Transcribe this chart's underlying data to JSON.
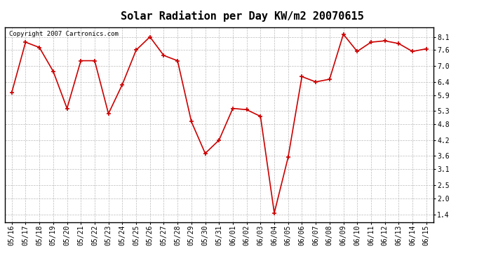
{
  "title": "Solar Radiation per Day KW/m2 20070615",
  "copyright_text": "Copyright 2007 Cartronics.com",
  "dates": [
    "05/16",
    "05/17",
    "05/18",
    "05/19",
    "05/20",
    "05/21",
    "05/22",
    "05/23",
    "05/24",
    "05/25",
    "05/26",
    "05/27",
    "05/28",
    "05/29",
    "05/30",
    "05/31",
    "06/01",
    "06/02",
    "06/03",
    "06/04",
    "06/05",
    "06/06",
    "06/07",
    "06/08",
    "06/09",
    "06/10",
    "06/11",
    "06/12",
    "06/13",
    "06/14",
    "06/15"
  ],
  "values": [
    6.0,
    7.9,
    7.7,
    6.8,
    5.4,
    7.2,
    7.2,
    5.2,
    6.3,
    7.6,
    8.1,
    7.4,
    7.2,
    4.9,
    3.7,
    4.2,
    5.4,
    5.35,
    5.1,
    1.45,
    3.55,
    6.6,
    6.4,
    6.5,
    8.2,
    7.55,
    7.9,
    7.95,
    7.85,
    7.55,
    7.65
  ],
  "line_color": "#cc0000",
  "marker": "+",
  "marker_size": 5,
  "marker_color": "#cc0000",
  "ylim": [
    1.1,
    8.45
  ],
  "yticks": [
    1.4,
    2.0,
    2.5,
    3.1,
    3.6,
    4.2,
    4.8,
    5.3,
    5.9,
    6.4,
    7.0,
    7.6,
    8.1
  ],
  "background_color": "#ffffff",
  "plot_bg_color": "#ffffff",
  "grid_color": "#bbbbbb",
  "title_fontsize": 11,
  "tick_fontsize": 7,
  "copyright_fontsize": 6.5
}
